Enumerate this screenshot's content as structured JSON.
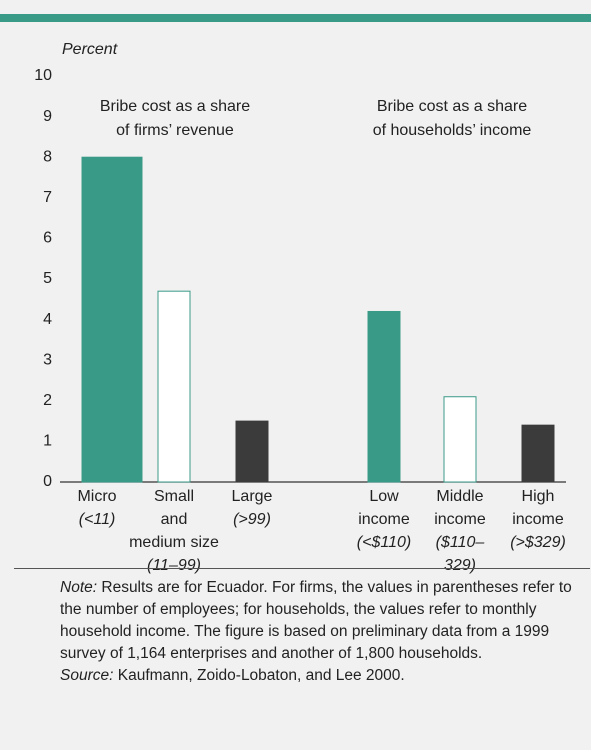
{
  "chart_data": {
    "type": "bar",
    "y_label": "Percent",
    "group_titles": [
      [
        "Bribe cost as a share",
        "of firms’ revenue"
      ],
      [
        "Bribe cost as a share",
        "of households’ income"
      ]
    ],
    "categories": [
      [
        "Micro"
      ],
      [
        "Small",
        "and",
        "medium size"
      ],
      [
        "Large"
      ],
      [
        "Low",
        "income"
      ],
      [
        "Middle",
        "income"
      ],
      [
        "High",
        "income"
      ]
    ],
    "category_notes": [
      [
        "(<11)"
      ],
      [
        "(11–99)"
      ],
      [
        "(>99)"
      ],
      [
        "(<$110)"
      ],
      [
        "($110–",
        "329)"
      ],
      [
        "(>$329)"
      ]
    ],
    "values": [
      8,
      4.7,
      1.5,
      4.2,
      2.1,
      1.4
    ],
    "colors": [
      "#3a9a88",
      "#ffffff",
      "#3b3b3b",
      "#3a9a88",
      "#ffffff",
      "#3b3b3b"
    ],
    "ylim": [
      0,
      10
    ],
    "yticks": [
      0,
      1,
      2,
      3,
      4,
      5,
      6,
      7,
      8,
      9,
      10
    ],
    "note": {
      "label": "Note:",
      "text": "Results are for Ecuador. For firms, the values in parentheses refer to the number of employees; for households, the values refer to monthly household income. The figure is based on preliminary data from a 1999 survey of 1,164 enterprises and another of 1,800 households."
    },
    "source": {
      "label": "Source:",
      "text": "Kaufmann, Zoido-Lobaton, and Lee 2000."
    }
  }
}
